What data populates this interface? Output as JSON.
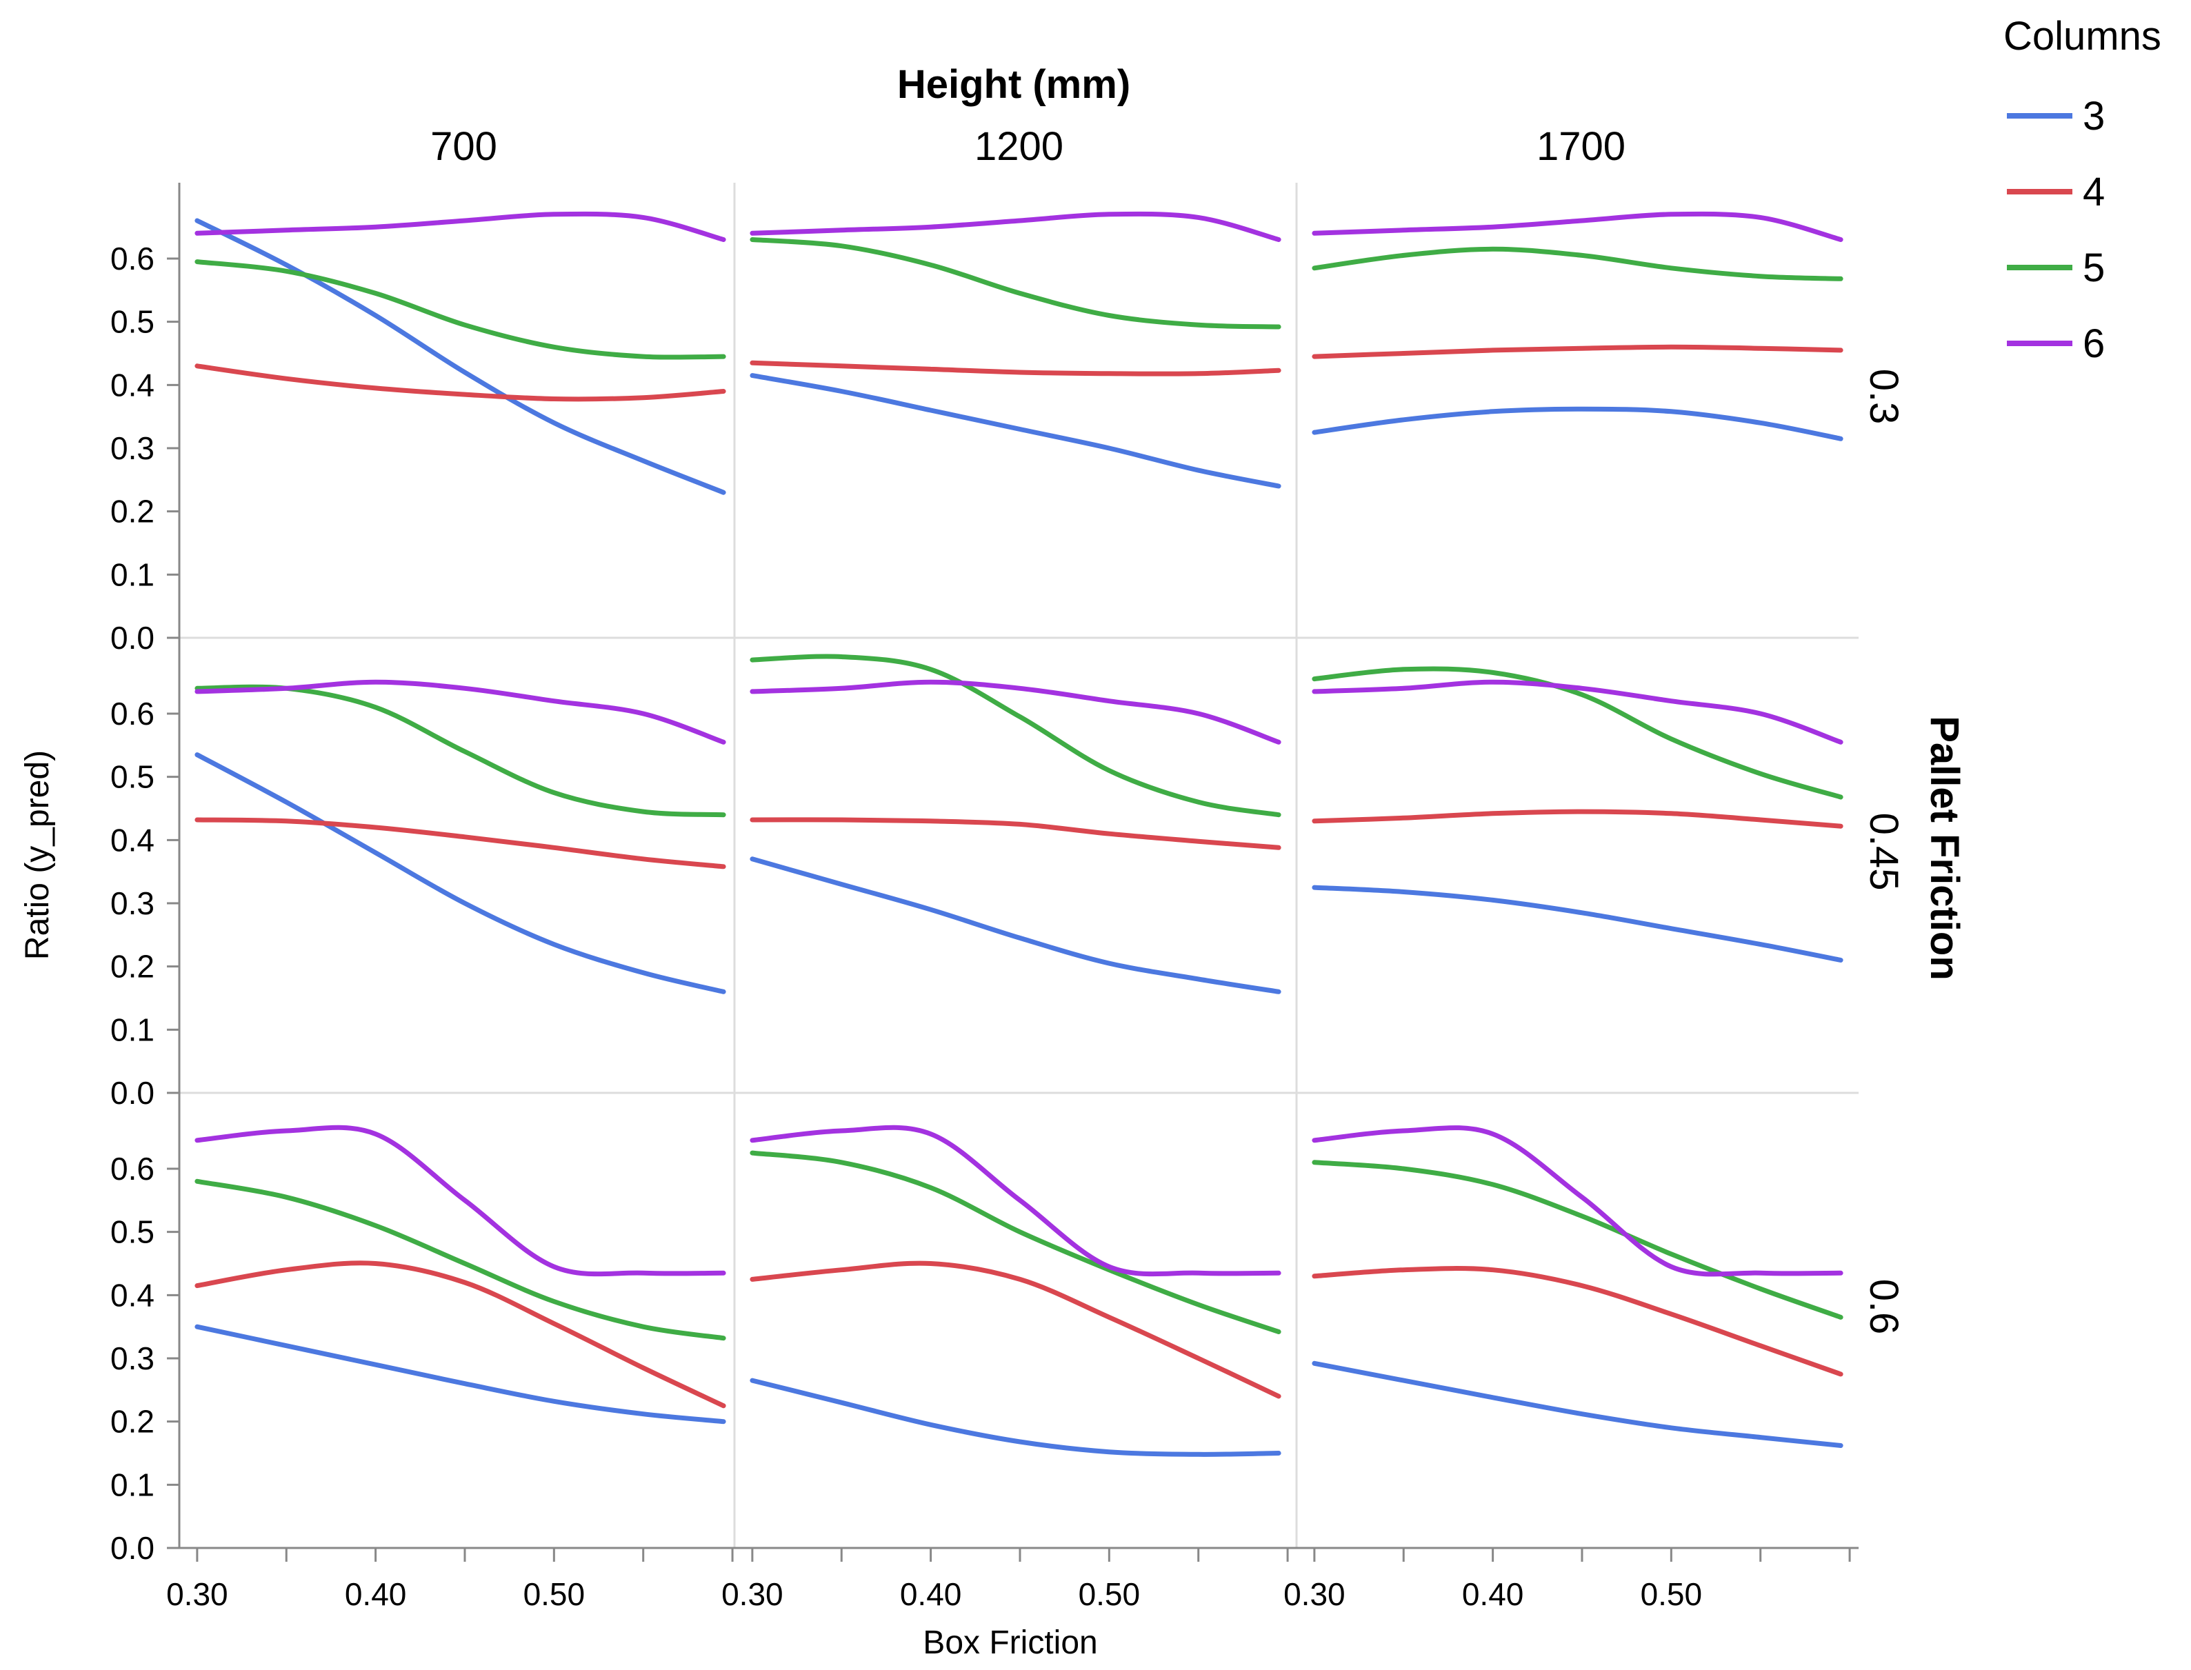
{
  "chart_data": {
    "type": "line",
    "title": "Height (mm)",
    "xlabel": "Box Friction",
    "ylabel": "Ratio (y_pred)",
    "row_title": "Pallet Friction",
    "xlim": [
      0.29,
      0.605
    ],
    "ylim": [
      0.0,
      0.72
    ],
    "x_ticks": [
      0.3,
      0.35,
      0.4,
      0.45,
      0.5,
      0.55,
      0.6
    ],
    "x_tick_labels": [
      "0.30",
      "0.40",
      "0.50"
    ],
    "x_tick_label_values": [
      0.3,
      0.4,
      0.5
    ],
    "y_ticks": [
      0.0,
      0.1,
      0.2,
      0.3,
      0.4,
      0.5,
      0.6
    ],
    "y_tick_labels": [
      "0.0",
      "0.1",
      "0.2",
      "0.3",
      "0.4",
      "0.5",
      "0.6"
    ],
    "column_facets": [
      "700",
      "1200",
      "1700"
    ],
    "row_facets": [
      "0.3",
      "0.45",
      "0.6"
    ],
    "legend": {
      "title": "Columns",
      "entries": [
        {
          "label": "3",
          "color": "#4c78e0"
        },
        {
          "label": "4",
          "color": "#d9474f"
        },
        {
          "label": "5",
          "color": "#3fac45"
        },
        {
          "label": "6",
          "color": "#a332e0"
        }
      ]
    },
    "x": [
      0.3,
      0.35,
      0.4,
      0.45,
      0.5,
      0.55,
      0.595
    ],
    "panels": [
      {
        "row": "0.3",
        "col": "700",
        "series": [
          {
            "name": "3",
            "values": [
              0.66,
              0.59,
              0.51,
              0.42,
              0.34,
              0.28,
              0.23
            ]
          },
          {
            "name": "4",
            "values": [
              0.43,
              0.41,
              0.395,
              0.385,
              0.378,
              0.38,
              0.39
            ]
          },
          {
            "name": "5",
            "values": [
              0.595,
              0.58,
              0.545,
              0.495,
              0.46,
              0.445,
              0.445
            ]
          },
          {
            "name": "6",
            "values": [
              0.64,
              0.645,
              0.65,
              0.66,
              0.67,
              0.665,
              0.63
            ]
          }
        ]
      },
      {
        "row": "0.3",
        "col": "1200",
        "series": [
          {
            "name": "3",
            "values": [
              0.415,
              0.39,
              0.36,
              0.33,
              0.3,
              0.265,
              0.24
            ]
          },
          {
            "name": "4",
            "values": [
              0.435,
              0.43,
              0.425,
              0.42,
              0.418,
              0.418,
              0.423
            ]
          },
          {
            "name": "5",
            "values": [
              0.63,
              0.62,
              0.59,
              0.545,
              0.51,
              0.495,
              0.492
            ]
          },
          {
            "name": "6",
            "values": [
              0.64,
              0.645,
              0.65,
              0.66,
              0.67,
              0.665,
              0.63
            ]
          }
        ]
      },
      {
        "row": "0.3",
        "col": "1700",
        "series": [
          {
            "name": "3",
            "values": [
              0.325,
              0.345,
              0.358,
              0.362,
              0.358,
              0.34,
              0.315
            ]
          },
          {
            "name": "4",
            "values": [
              0.445,
              0.45,
              0.455,
              0.458,
              0.46,
              0.458,
              0.455
            ]
          },
          {
            "name": "5",
            "values": [
              0.585,
              0.605,
              0.615,
              0.605,
              0.585,
              0.572,
              0.568
            ]
          },
          {
            "name": "6",
            "values": [
              0.64,
              0.645,
              0.65,
              0.66,
              0.67,
              0.665,
              0.63
            ]
          }
        ]
      },
      {
        "row": "0.45",
        "col": "700",
        "series": [
          {
            "name": "3",
            "values": [
              0.535,
              0.46,
              0.38,
              0.3,
              0.235,
              0.19,
              0.16
            ]
          },
          {
            "name": "4",
            "values": [
              0.432,
              0.43,
              0.42,
              0.405,
              0.388,
              0.37,
              0.358
            ]
          },
          {
            "name": "5",
            "values": [
              0.64,
              0.64,
              0.61,
              0.54,
              0.475,
              0.445,
              0.44
            ]
          },
          {
            "name": "6",
            "values": [
              0.635,
              0.64,
              0.65,
              0.64,
              0.62,
              0.6,
              0.555
            ]
          }
        ]
      },
      {
        "row": "0.45",
        "col": "1200",
        "series": [
          {
            "name": "3",
            "values": [
              0.37,
              0.33,
              0.29,
              0.245,
              0.205,
              0.18,
              0.16
            ]
          },
          {
            "name": "4",
            "values": [
              0.432,
              0.432,
              0.43,
              0.425,
              0.41,
              0.398,
              0.388
            ]
          },
          {
            "name": "5",
            "values": [
              0.685,
              0.69,
              0.67,
              0.595,
              0.51,
              0.46,
              0.44
            ]
          },
          {
            "name": "6",
            "values": [
              0.635,
              0.64,
              0.65,
              0.64,
              0.62,
              0.6,
              0.555
            ]
          }
        ]
      },
      {
        "row": "0.45",
        "col": "1700",
        "series": [
          {
            "name": "3",
            "values": [
              0.325,
              0.318,
              0.305,
              0.285,
              0.26,
              0.235,
              0.21
            ]
          },
          {
            "name": "4",
            "values": [
              0.43,
              0.435,
              0.442,
              0.445,
              0.442,
              0.432,
              0.422
            ]
          },
          {
            "name": "5",
            "values": [
              0.655,
              0.67,
              0.665,
              0.63,
              0.56,
              0.505,
              0.468
            ]
          },
          {
            "name": "6",
            "values": [
              0.635,
              0.64,
              0.65,
              0.64,
              0.62,
              0.6,
              0.555
            ]
          }
        ]
      },
      {
        "row": "0.6",
        "col": "700",
        "series": [
          {
            "name": "3",
            "values": [
              0.35,
              0.32,
              0.29,
              0.26,
              0.232,
              0.212,
              0.2
            ]
          },
          {
            "name": "4",
            "values": [
              0.415,
              0.44,
              0.45,
              0.42,
              0.355,
              0.285,
              0.225
            ]
          },
          {
            "name": "5",
            "values": [
              0.58,
              0.555,
              0.51,
              0.45,
              0.39,
              0.35,
              0.332
            ]
          },
          {
            "name": "6",
            "values": [
              0.645,
              0.66,
              0.655,
              0.55,
              0.445,
              0.435,
              0.435
            ]
          }
        ]
      },
      {
        "row": "0.6",
        "col": "1200",
        "series": [
          {
            "name": "3",
            "values": [
              0.265,
              0.23,
              0.195,
              0.168,
              0.152,
              0.148,
              0.15
            ]
          },
          {
            "name": "4",
            "values": [
              0.425,
              0.44,
              0.45,
              0.425,
              0.365,
              0.3,
              0.24
            ]
          },
          {
            "name": "5",
            "values": [
              0.625,
              0.61,
              0.57,
              0.5,
              0.44,
              0.385,
              0.342
            ]
          },
          {
            "name": "6",
            "values": [
              0.645,
              0.66,
              0.655,
              0.55,
              0.445,
              0.435,
              0.435
            ]
          }
        ]
      },
      {
        "row": "0.6",
        "col": "1700",
        "series": [
          {
            "name": "3",
            "values": [
              0.292,
              0.265,
              0.238,
              0.212,
              0.19,
              0.175,
              0.162
            ]
          },
          {
            "name": "4",
            "values": [
              0.43,
              0.44,
              0.44,
              0.415,
              0.37,
              0.32,
              0.275
            ]
          },
          {
            "name": "5",
            "values": [
              0.61,
              0.6,
              0.575,
              0.525,
              0.465,
              0.41,
              0.365
            ]
          },
          {
            "name": "6",
            "values": [
              0.645,
              0.66,
              0.655,
              0.555,
              0.445,
              0.435,
              0.435
            ]
          }
        ]
      }
    ]
  }
}
